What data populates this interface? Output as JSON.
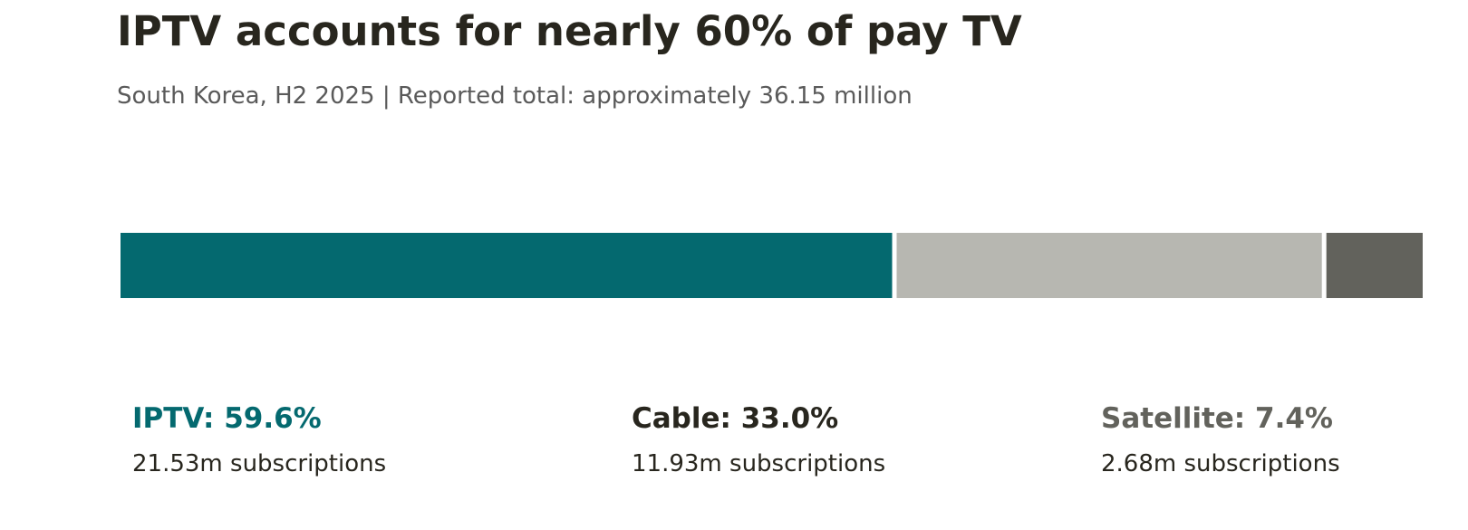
{
  "title": "IPTV accounts for nearly 60% of pay TV",
  "subtitle": "South Korea, H2 2025 | Reported total: approximately 36.15 million",
  "chart_data": {
    "type": "bar",
    "orientation": "horizontal-stacked",
    "unit": "%",
    "categories": [
      "IPTV",
      "Cable",
      "Satellite"
    ],
    "values": [
      59.6,
      33.0,
      7.4
    ],
    "subscriptions_millions": [
      21.53,
      11.93,
      2.68
    ],
    "segments": [
      {
        "name": "IPTV",
        "share": 59.6,
        "label": "IPTV: 59.6%",
        "sub": "21.53m subscriptions",
        "color": "#04696f",
        "label_color": "#04696f"
      },
      {
        "name": "Cable",
        "share": 33.0,
        "label": "Cable: 33.0%",
        "sub": "11.93m subscriptions",
        "color": "#b7b7b1",
        "label_color": "#28261e"
      },
      {
        "name": "Satellite",
        "share": 7.4,
        "label": "Satellite: 7.4%",
        "sub": "2.68m subscriptions",
        "color": "#62625c",
        "label_color": "#62625c"
      }
    ],
    "total_text": "approximately 36.15 million",
    "grid": false,
    "legend": "below-bar"
  }
}
